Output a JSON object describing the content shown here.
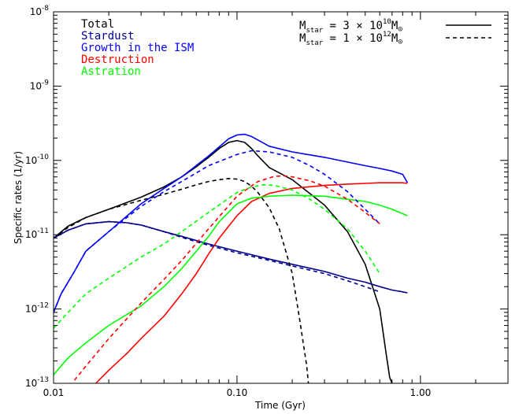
{
  "chart_data": {
    "type": "line",
    "title": "",
    "xlabel": "Time (Gyr)",
    "ylabel": "Specific rates (1/yr)",
    "xscale": "log",
    "yscale": "log",
    "xlim": [
      0.01,
      3.0
    ],
    "ylim": [
      1e-13,
      1e-08
    ],
    "grid": false,
    "legend_position": "top-left",
    "x_ticks": [
      {
        "value": 0.01,
        "label": "0.01"
      },
      {
        "value": 0.1,
        "label": "0.10"
      },
      {
        "value": 1.0,
        "label": "1.00"
      }
    ],
    "y_ticks": [
      {
        "value": 1e-13,
        "mantissa": "10",
        "exp": "-13"
      },
      {
        "value": 1e-12,
        "mantissa": "10",
        "exp": "-12"
      },
      {
        "value": 1e-11,
        "mantissa": "10",
        "exp": "-11"
      },
      {
        "value": 1e-10,
        "mantissa": "10",
        "exp": "-10"
      },
      {
        "value": 1e-09,
        "mantissa": "10",
        "exp": "-9"
      },
      {
        "value": 1e-08,
        "mantissa": "10",
        "exp": "-8"
      }
    ],
    "legend": [
      {
        "label": "Total",
        "color": "#000000"
      },
      {
        "label": "Stardust",
        "color": "#00008b"
      },
      {
        "label": "Growth in the ISM",
        "color": "#0000ff"
      },
      {
        "label": "Destruction",
        "color": "#ff0000"
      },
      {
        "label": "Astration",
        "color": "#00ff00"
      }
    ],
    "style_legend": [
      {
        "prefix": "M",
        "sub": "star",
        "text": " = 3 × 10",
        "exp": "10",
        "unit": "M",
        "unit_sub": "⊙",
        "dash": "solid"
      },
      {
        "prefix": "M",
        "sub": "star",
        "text": " = 1 × 10",
        "exp": "12",
        "unit": "M",
        "unit_sub": "⊙",
        "dash": "dashed"
      }
    ],
    "series": [
      {
        "name": "Total",
        "color": "#000000",
        "dash": "solid",
        "x": [
          0.01,
          0.012,
          0.015,
          0.02,
          0.03,
          0.04,
          0.05,
          0.06,
          0.07,
          0.08,
          0.09,
          0.1,
          0.11,
          0.12,
          0.13,
          0.15,
          0.2,
          0.3,
          0.4,
          0.5,
          0.6,
          0.65,
          0.68,
          0.7
        ],
        "y": [
          9e-12,
          1.3e-11,
          1.7e-11,
          2.2e-11,
          3.2e-11,
          4.4e-11,
          6e-11,
          8.2e-11,
          1.1e-10,
          1.45e-10,
          1.75e-10,
          1.85e-10,
          1.75e-10,
          1.45e-10,
          1.15e-10,
          8e-11,
          5.5e-11,
          2.5e-11,
          1.1e-11,
          4e-12,
          1e-12,
          2.5e-13,
          1.2e-13,
          1e-13
        ]
      },
      {
        "name": "Stardust",
        "color": "#00008b",
        "dash": "solid",
        "x": [
          0.01,
          0.012,
          0.015,
          0.02,
          0.025,
          0.03,
          0.04,
          0.05,
          0.07,
          0.1,
          0.15,
          0.2,
          0.3,
          0.4,
          0.5,
          0.6,
          0.7,
          0.8,
          0.85
        ],
        "y": [
          9e-12,
          1.15e-11,
          1.4e-11,
          1.5e-11,
          1.45e-11,
          1.35e-11,
          1.1e-11,
          9.5e-12,
          7.5e-12,
          6e-12,
          4.7e-12,
          4e-12,
          3.2e-12,
          2.6e-12,
          2.3e-12,
          2e-12,
          1.8e-12,
          1.7e-12,
          1.65e-12
        ]
      },
      {
        "name": "Growth in the ISM",
        "color": "#0000ff",
        "dash": "solid",
        "x": [
          0.01,
          0.011,
          0.013,
          0.015,
          0.02,
          0.03,
          0.04,
          0.05,
          0.07,
          0.09,
          0.1,
          0.11,
          0.12,
          0.15,
          0.2,
          0.3,
          0.4,
          0.5,
          0.6,
          0.7,
          0.8,
          0.85
        ],
        "y": [
          9e-13,
          1.6e-12,
          3.2e-12,
          6e-12,
          1.1e-11,
          2.6e-11,
          4.2e-11,
          6e-11,
          1.15e-10,
          1.95e-10,
          2.2e-10,
          2.25e-10,
          2.1e-10,
          1.55e-10,
          1.3e-10,
          1.1e-10,
          9.5e-11,
          8.5e-11,
          7.8e-11,
          7.2e-11,
          6.5e-11,
          5e-11
        ]
      },
      {
        "name": "Destruction",
        "color": "#ff0000",
        "dash": "solid",
        "x": [
          0.017,
          0.02,
          0.025,
          0.03,
          0.04,
          0.05,
          0.06,
          0.07,
          0.08,
          0.1,
          0.12,
          0.15,
          0.2,
          0.3,
          0.4,
          0.5,
          0.6,
          0.7,
          0.8,
          0.85
        ],
        "y": [
          1e-13,
          1.5e-13,
          2.5e-13,
          4e-13,
          8e-13,
          1.6e-12,
          3e-12,
          5.5e-12,
          9e-12,
          1.8e-11,
          2.8e-11,
          3.6e-11,
          4.2e-11,
          4.6e-11,
          4.8e-11,
          4.9e-11,
          5e-11,
          5e-11,
          5e-11,
          4.9e-11
        ]
      },
      {
        "name": "Astration",
        "color": "#00ff00",
        "dash": "solid",
        "x": [
          0.01,
          0.012,
          0.015,
          0.02,
          0.03,
          0.04,
          0.05,
          0.06,
          0.07,
          0.08,
          0.1,
          0.12,
          0.15,
          0.2,
          0.3,
          0.4,
          0.5,
          0.6,
          0.7,
          0.85
        ],
        "y": [
          1.3e-13,
          2.2e-13,
          3.5e-13,
          6e-13,
          1.1e-12,
          2e-12,
          3.5e-12,
          6e-12,
          9.5e-12,
          1.5e-11,
          2.6e-11,
          3.1e-11,
          3.3e-11,
          3.4e-11,
          3.3e-11,
          3e-11,
          2.8e-11,
          2.5e-11,
          2.2e-11,
          1.8e-11
        ]
      },
      {
        "name": "Total",
        "color": "#000000",
        "dash": "dashed",
        "x": [
          0.01,
          0.012,
          0.015,
          0.02,
          0.03,
          0.04,
          0.05,
          0.06,
          0.07,
          0.08,
          0.09,
          0.1,
          0.11,
          0.12,
          0.13,
          0.15,
          0.17,
          0.2,
          0.22,
          0.24,
          0.245
        ],
        "y": [
          9e-12,
          1.25e-11,
          1.7e-11,
          2.2e-11,
          2.9e-11,
          3.5e-11,
          4.1e-11,
          4.7e-11,
          5.2e-11,
          5.5e-11,
          5.7e-11,
          5.6e-11,
          5.2e-11,
          4.5e-11,
          3.7e-11,
          2.3e-11,
          1.2e-11,
          3e-12,
          7e-13,
          1.7e-13,
          1e-13
        ]
      },
      {
        "name": "Stardust",
        "color": "#00008b",
        "dash": "dashed",
        "x": [
          0.01,
          0.012,
          0.015,
          0.02,
          0.025,
          0.03,
          0.04,
          0.05,
          0.07,
          0.1,
          0.15,
          0.2,
          0.3,
          0.4,
          0.5,
          0.6
        ],
        "y": [
          9e-12,
          1.15e-11,
          1.4e-11,
          1.5e-11,
          1.45e-11,
          1.35e-11,
          1.1e-11,
          9.2e-12,
          7.2e-12,
          5.7e-12,
          4.5e-12,
          3.8e-12,
          3e-12,
          2.4e-12,
          2e-12,
          1.7e-12
        ]
      },
      {
        "name": "Growth in the ISM",
        "color": "#0000ff",
        "dash": "dashed",
        "x": [
          0.01,
          0.011,
          0.013,
          0.015,
          0.02,
          0.03,
          0.04,
          0.05,
          0.07,
          0.1,
          0.12,
          0.15,
          0.2,
          0.25,
          0.3,
          0.4,
          0.5,
          0.6
        ],
        "y": [
          9e-13,
          1.6e-12,
          3.2e-12,
          6e-12,
          1.1e-11,
          2.4e-11,
          3.8e-11,
          5.2e-11,
          8.5e-11,
          1.2e-10,
          1.35e-10,
          1.3e-10,
          1.1e-10,
          8.5e-11,
          6.5e-11,
          3.8e-11,
          2.2e-11,
          1.4e-11
        ]
      },
      {
        "name": "Destruction",
        "color": "#ff0000",
        "dash": "dashed",
        "x": [
          0.013,
          0.015,
          0.02,
          0.03,
          0.04,
          0.05,
          0.07,
          0.1,
          0.13,
          0.16,
          0.18,
          0.2,
          0.25,
          0.3,
          0.4,
          0.5,
          0.6
        ],
        "y": [
          1.1e-13,
          1.7e-13,
          4e-13,
          1.2e-12,
          2.5e-12,
          4.5e-12,
          1.2e-11,
          3.3e-11,
          5.2e-11,
          6.1e-11,
          6.2e-11,
          6e-11,
          5.3e-11,
          4.5e-11,
          3e-11,
          2e-11,
          1.4e-11
        ]
      },
      {
        "name": "Astration",
        "color": "#00ff00",
        "dash": "dashed",
        "x": [
          0.01,
          0.012,
          0.015,
          0.02,
          0.03,
          0.04,
          0.05,
          0.07,
          0.1,
          0.12,
          0.14,
          0.16,
          0.2,
          0.25,
          0.3,
          0.4,
          0.5,
          0.6
        ],
        "y": [
          5.5e-13,
          9e-13,
          1.6e-12,
          2.6e-12,
          5e-12,
          7.5e-12,
          1.1e-11,
          2e-11,
          3.7e-11,
          4.4e-11,
          4.7e-11,
          4.6e-11,
          4e-11,
          3e-11,
          2.2e-11,
          1.2e-11,
          6e-12,
          3e-12
        ]
      }
    ]
  }
}
